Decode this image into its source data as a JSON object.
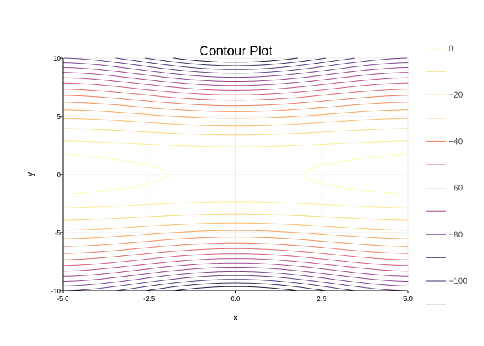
{
  "chart_data": {
    "type": "contour",
    "title": "Contour Plot",
    "xlabel": "x",
    "ylabel": "y",
    "xlim": [
      -5,
      5
    ],
    "ylim": [
      -10,
      10
    ],
    "x_ticks": [
      "-5.0",
      "-2.5",
      "0.0",
      "2.5",
      "5.0"
    ],
    "y_ticks": [
      "-10",
      "-5",
      "0",
      "5",
      "10"
    ],
    "grid": true,
    "legend_position": "right",
    "contour_levels": [
      0,
      -6.67,
      -13.33,
      -20,
      -26.67,
      -33.33,
      -40,
      -46.67,
      -53.33,
      -60,
      -66.67,
      -73.33,
      -80,
      -86.67,
      -93.33,
      -100,
      -106.67
    ],
    "colorbar_labels": [
      "0",
      "−20",
      "−40",
      "−60",
      "−80",
      "−100"
    ],
    "colorbar_label_values": [
      0,
      -20,
      -40,
      -60,
      -80,
      -100
    ],
    "colormap": [
      "#fcfda4",
      "#fde68a",
      "#fbc56b",
      "#f7a55a",
      "#f08a5c",
      "#e56f64",
      "#d4587a",
      "#b84a8c",
      "#9b4591",
      "#7d4390",
      "#5e3f87",
      "#3d3a75",
      "#1e1b3f"
    ]
  }
}
